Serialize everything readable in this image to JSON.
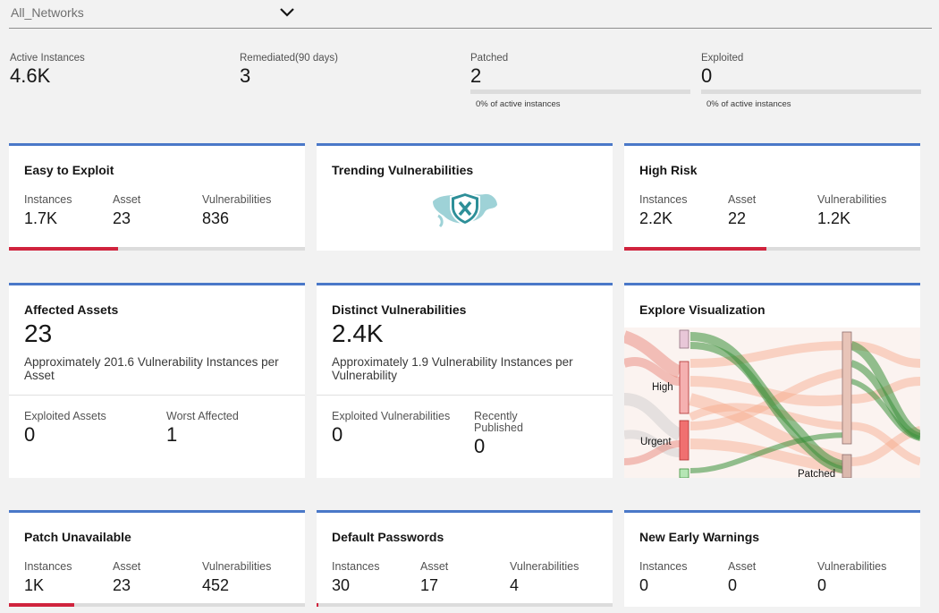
{
  "network_select": {
    "value": "All_Networks"
  },
  "stats": [
    {
      "label": "Active Instances",
      "value": "4.6K"
    },
    {
      "label": "Remediated(90 days)",
      "value": "3"
    },
    {
      "label": "Patched",
      "value": "2",
      "sub": "0% of active instances",
      "fraction": 0.0
    },
    {
      "label": "Exploited",
      "value": "0",
      "sub": "0% of active instances",
      "fraction": 0.0
    }
  ],
  "cards": {
    "easy_to_exploit": {
      "title": "Easy to Exploit",
      "instances_label": "Instances",
      "instances": "1.7K",
      "asset_label": "Asset",
      "asset": "23",
      "vuln_label": "Vulnerabilities",
      "vulns": "836",
      "progress": 0.37
    },
    "trending": {
      "title": "Trending Vulnerabilities"
    },
    "high_risk": {
      "title": "High Risk",
      "instances_label": "Instances",
      "instances": "2.2K",
      "asset_label": "Asset",
      "asset": "22",
      "vuln_label": "Vulnerabilities",
      "vulns": "1.2K",
      "progress": 0.48
    },
    "affected_assets": {
      "title": "Affected Assets",
      "value": "23",
      "desc": "Approximately 201.6 Vulnerability Instances per Asset",
      "m1_label": "Exploited Assets",
      "m1": "0",
      "m2_label": "Worst Affected",
      "m2": "1"
    },
    "distinct_vulns": {
      "title": "Distinct Vulnerabilities",
      "value": "2.4K",
      "desc": "Approximately 1.9 Vulnerability Instances per Vulnerability",
      "m1_label": "Exploited Vulnerabilities",
      "m1": "0",
      "m2_label": "Recently Published",
      "m2": "0"
    },
    "explore_viz": {
      "title": "Explore Visualization",
      "labels": {
        "high": "High",
        "urgent": "Urgent",
        "patched": "Patched"
      }
    },
    "patch_unavailable": {
      "title": "Patch Unavailable",
      "instances_label": "Instances",
      "instances": "1K",
      "asset_label": "Asset",
      "asset": "23",
      "vuln_label": "Vulnerabilities",
      "vulns": "452",
      "progress": 0.22
    },
    "default_passwords": {
      "title": "Default Passwords",
      "instances_label": "Instances",
      "instances": "30",
      "asset_label": "Asset",
      "asset": "17",
      "vuln_label": "Vulnerabilities",
      "vulns": "4",
      "progress": 0.007
    },
    "new_early_warnings": {
      "title": "New Early Warnings",
      "instances_label": "Instances",
      "instances": "0",
      "asset_label": "Asset",
      "asset": "0",
      "vuln_label": "Vulnerabilities",
      "vulns": "0",
      "progress": 0.0
    }
  },
  "colors": {
    "accent": "#4a78c8",
    "danger": "#d0233d",
    "track": "#dcdcdc"
  },
  "icons": {
    "network_chevron": "chevron-down-icon",
    "trending": "shield-x-icon"
  }
}
